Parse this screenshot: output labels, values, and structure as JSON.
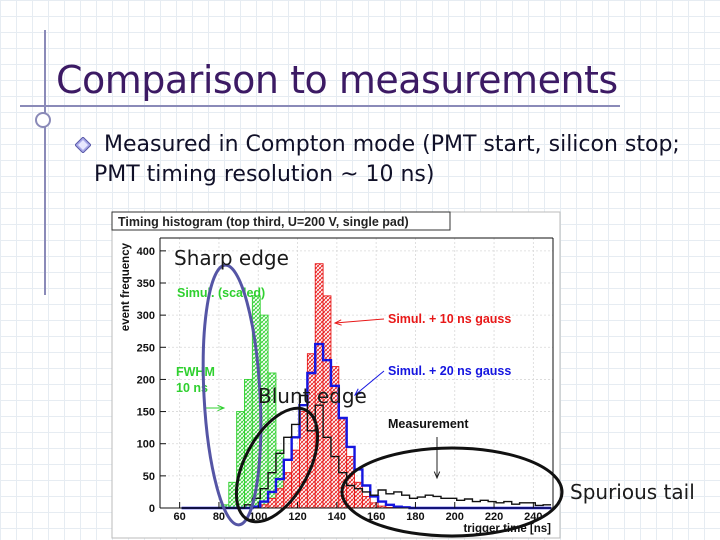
{
  "slide": {
    "title": "Comparison to measurements",
    "bullet": "Measured in Compton mode (PMT start, silicon stop; PMT timing resolution ~ 10 ns)",
    "annotations": {
      "sharp_edge": "Sharp edge",
      "blunt_edge": "Blunt edge",
      "spurious_tail": "Spurious tail"
    }
  },
  "chart_data": {
    "type": "bar",
    "title": "Timing histogram (top third, U=200 V, single pad)",
    "xlabel": "trigger time [ns]",
    "ylabel": "event frequency",
    "xlim": [
      50,
      250
    ],
    "ylim": [
      0,
      420
    ],
    "xticks": [
      60,
      80,
      100,
      120,
      140,
      160,
      180,
      200,
      220,
      240
    ],
    "yticks": [
      0,
      50,
      100,
      150,
      200,
      250,
      300,
      350,
      400
    ],
    "bin_centers": [
      63,
      67,
      71,
      75,
      79,
      83,
      87,
      91,
      95,
      99,
      103,
      107,
      111,
      115,
      119,
      123,
      127,
      131,
      135,
      139,
      143,
      147,
      151,
      155,
      159,
      163,
      167,
      171,
      175,
      179,
      183,
      187,
      191,
      195,
      199,
      203,
      207,
      211,
      215,
      219,
      223,
      227,
      231,
      235,
      239,
      243,
      247
    ],
    "series": [
      {
        "name": "Simul. (scaled)",
        "color": "#2fd02f",
        "values": [
          0,
          0,
          0,
          0,
          0,
          5,
          40,
          150,
          200,
          330,
          300,
          210,
          90,
          40,
          15,
          5,
          2,
          0,
          0,
          0,
          0,
          0,
          0,
          0,
          0,
          0,
          0,
          0,
          0,
          0,
          0,
          0,
          0,
          0,
          0,
          0,
          0,
          0,
          0,
          0,
          0,
          0,
          0,
          0,
          0,
          0,
          0
        ]
      },
      {
        "name": "Simul. + 10 ns gauss",
        "color": "#e81818",
        "values": [
          0,
          0,
          0,
          0,
          0,
          0,
          0,
          0,
          0,
          0,
          5,
          15,
          30,
          55,
          90,
          150,
          240,
          380,
          330,
          220,
          140,
          80,
          40,
          18,
          8,
          3,
          1,
          0,
          0,
          0,
          0,
          0,
          0,
          0,
          0,
          0,
          0,
          0,
          0,
          0,
          0,
          0,
          0,
          0,
          0,
          0,
          0
        ]
      },
      {
        "name": "Simul. + 20 ns gauss",
        "color": "#1515e0",
        "values": [
          0,
          0,
          0,
          0,
          0,
          0,
          0,
          0,
          0,
          2,
          10,
          25,
          45,
          75,
          110,
          160,
          210,
          255,
          230,
          190,
          140,
          95,
          60,
          35,
          18,
          10,
          5,
          2,
          1,
          0,
          0,
          0,
          0,
          0,
          0,
          0,
          0,
          0,
          0,
          0,
          0,
          0,
          0,
          0,
          0,
          0,
          0
        ]
      },
      {
        "name": "Measurement",
        "color": "#111111",
        "values": [
          0,
          0,
          0,
          0,
          0,
          0,
          0,
          0,
          5,
          15,
          30,
          55,
          85,
          110,
          130,
          175,
          120,
          160,
          110,
          80,
          55,
          35,
          30,
          25,
          20,
          28,
          22,
          25,
          20,
          15,
          17,
          20,
          18,
          15,
          15,
          12,
          14,
          10,
          12,
          10,
          8,
          10,
          6,
          8,
          8,
          4,
          5
        ]
      }
    ],
    "annotations": [
      "Simul. (scaled)",
      "FWHM",
      "10 ns",
      "Simul. + 10 ns gauss",
      "Simul. + 20 ns gauss",
      "Measurement"
    ],
    "grid": true,
    "legend": "inline annotations"
  }
}
